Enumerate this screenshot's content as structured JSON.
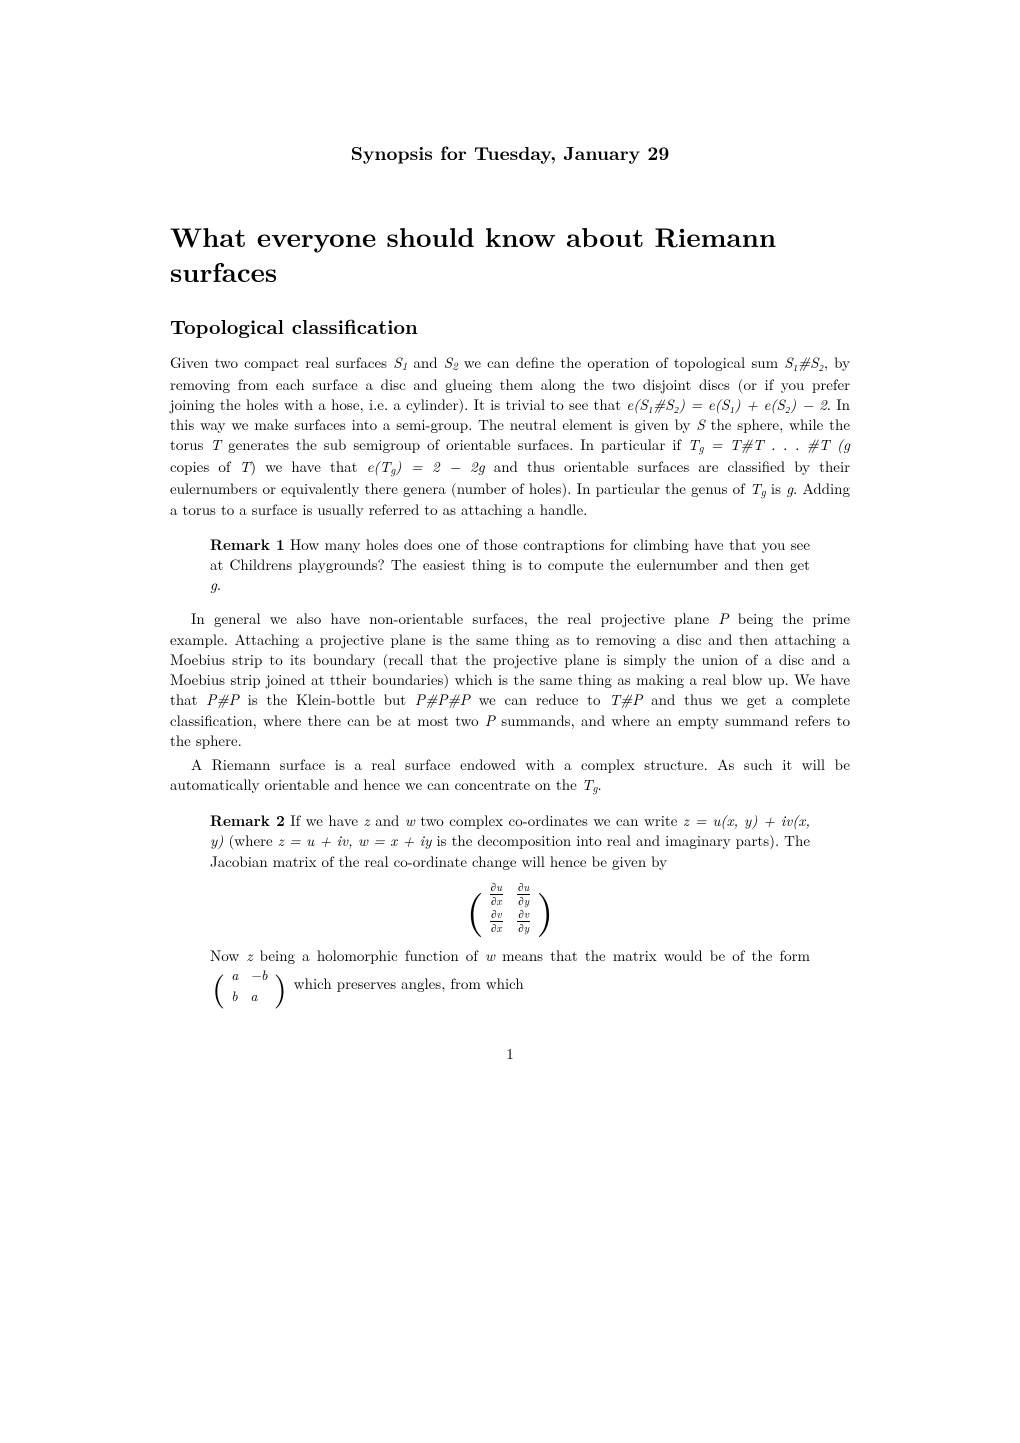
{
  "header": "Synopsis for Tuesday, January 29",
  "title": "What everyone should know about Riemann surfaces",
  "section1": "Topological classification",
  "p1a": "Given two compact real surfaces ",
  "p1b": " and ",
  "p1c": " we can define the operation of topological sum ",
  "p1d": ", by removing from each surface a disc and glueing them along the two disjoint discs (or if you prefer joining the holes with a hose, i.e. a cylinder). It is trivial to see that ",
  "p1e": ". In this way we make surfaces into a semi-group. The neutral element is given by ",
  "p1f": " the sphere, while the torus ",
  "p1g": " generates the sub semigroup of orientable surfaces. In particular if ",
  "p1h": " copies of ",
  "p1i": ") we have that ",
  "p1j": " and thus orientable surfaces are classified by their eulernumbers or equivalently there genera (number of holes). In particular the genus of ",
  "p1k": " is ",
  "p1l": ". Adding a torus to a surface is usually referred to as attaching a handle.",
  "r1label": "Remark 1",
  "r1text": "   How many holes does one of those contraptions for climbing have that you see at Childrens playgrounds? The easiest thing is to compute the eulernumber and then get ",
  "r1suffix": ".",
  "p2a": "In general we also have non-orientable surfaces, the real projective plane ",
  "p2b": " being the prime example. Attaching a projective plane is the same thing as to removing a disc and then attaching a Moebius strip to its boundary (recall that the projective plane is simply the union of a disc and a Moebius strip joined at ttheir boundaries) which is the same thing as making a real blow up. We have that ",
  "p2c": " is the Klein-bottle but ",
  "p2d": " we can reduce to ",
  "p2e": " and thus we get a complete classification, where there can be at most two ",
  "p2f": " summands, and where an empty summand refers to the sphere.",
  "p3a": "A Riemann surface is a real surface endowed with a complex structure. As such it will be automatically orientable and hence we can concentrate on the ",
  "p3b": ".",
  "r2label": "Remark 2",
  "r2a": "   If we have ",
  "r2b": " and ",
  "r2c": " two complex co-ordinates we can write ",
  "r2d": " (where ",
  "r2e": " is the decomposition into real and imaginary parts). The Jacobian matrix of the real co-ordinate change will hence be given by",
  "r2f": "Now ",
  "r2g": " being a holomorphic function of ",
  "r2h": " means that the matrix would be of the form ",
  "r2i": " which preserves angles, from which",
  "sym": {
    "S1": "S",
    "S2": "S",
    "S": "S",
    "T": "T",
    "Tg": "T",
    "g": "g",
    "P": "P",
    "z": "z",
    "w": "w",
    "u": "u",
    "v": "v",
    "x": "x",
    "y": "y",
    "a": "a",
    "b": "b",
    "eq1": "e(S₁#S₂) = e(S₁) + e(S₂) − 2",
    "eq2l": "T",
    "eq2": " = T#T . . . #T (g",
    "eq3l": "e(T",
    "eq3r": ") = 2 − 2g",
    "eq4": "S₁#S₂",
    "zuv": "z = u(x, y) + iv(x, y)",
    "zwexp": "z = u + iv, w = x + iy",
    "PhP": "P#P",
    "PhPhP": "P#P#P",
    "ThP": "T#P",
    "du": "∂u",
    "dv": "∂v",
    "dx": "∂x",
    "dy": "∂y",
    "minusb": "−b"
  },
  "pagenum": "1"
}
